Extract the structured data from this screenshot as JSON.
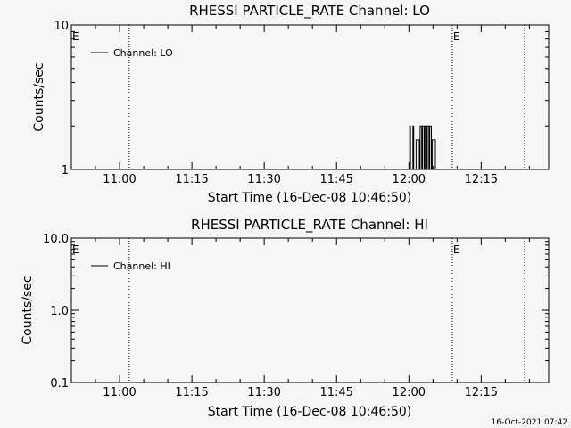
{
  "footer_timestamp": "16-Oct-2021 07:42",
  "chart_data": [
    {
      "type": "line",
      "title": "RHESSI PARTICLE_RATE Channel: LO",
      "xlabel": "Start Time (16-Dec-08 10:46:50)",
      "ylabel": "Counts/sec",
      "yscale": "log",
      "ylim": [
        1,
        10
      ],
      "ytick_labels": [
        {
          "v": 1,
          "t": "1"
        },
        {
          "v": 10,
          "t": "10"
        }
      ],
      "xlim": [
        "10:50:00",
        "12:29:00"
      ],
      "xtick_labels": [
        "11:00",
        "11:15",
        "11:30",
        "11:45",
        "12:00",
        "12:15"
      ],
      "vlines": [
        "11:02:00",
        "12:09:00",
        "12:24:00"
      ],
      "markers": [
        {
          "x": "10:50:00",
          "label": "E"
        },
        {
          "x": "12:09:00",
          "label": "E"
        }
      ],
      "legend": "top-left",
      "series": [
        {
          "name": "Channel: LO",
          "x": [
            "11:58:00",
            "12:00:00",
            "12:00:10",
            "12:00:20",
            "12:00:40",
            "12:00:50",
            "12:01:00",
            "12:01:20",
            "12:01:30",
            "12:02:10",
            "12:02:20",
            "12:02:40",
            "12:02:50",
            "12:03:10",
            "12:03:20",
            "12:03:40",
            "12:03:50",
            "12:04:10",
            "12:04:20",
            "12:04:40",
            "12:04:50",
            "12:05:30"
          ],
          "y": [
            1,
            1,
            2,
            1,
            1,
            2,
            1,
            1,
            1.6,
            1,
            2,
            1,
            2,
            1,
            2,
            1,
            2,
            1,
            2,
            1,
            1.6,
            1
          ]
        }
      ]
    },
    {
      "type": "line",
      "title": "RHESSI PARTICLE_RATE Channel: HI",
      "xlabel": "Start Time (16-Dec-08 10:46:50)",
      "ylabel": "Counts/sec",
      "yscale": "log",
      "ylim": [
        0.1,
        10
      ],
      "ytick_labels": [
        {
          "v": 0.1,
          "t": "0.1"
        },
        {
          "v": 1,
          "t": "1.0"
        },
        {
          "v": 10,
          "t": "10.0"
        }
      ],
      "xlim": [
        "10:50:00",
        "12:29:00"
      ],
      "xtick_labels": [
        "11:00",
        "11:15",
        "11:30",
        "11:45",
        "12:00",
        "12:15"
      ],
      "vlines": [
        "11:02:00",
        "12:09:00",
        "12:24:00"
      ],
      "markers": [
        {
          "x": "10:50:00",
          "label": "E"
        },
        {
          "x": "12:09:00",
          "label": "E"
        }
      ],
      "legend": "top-left",
      "series": [
        {
          "name": "Channel: HI",
          "x": [],
          "y": []
        }
      ]
    }
  ]
}
